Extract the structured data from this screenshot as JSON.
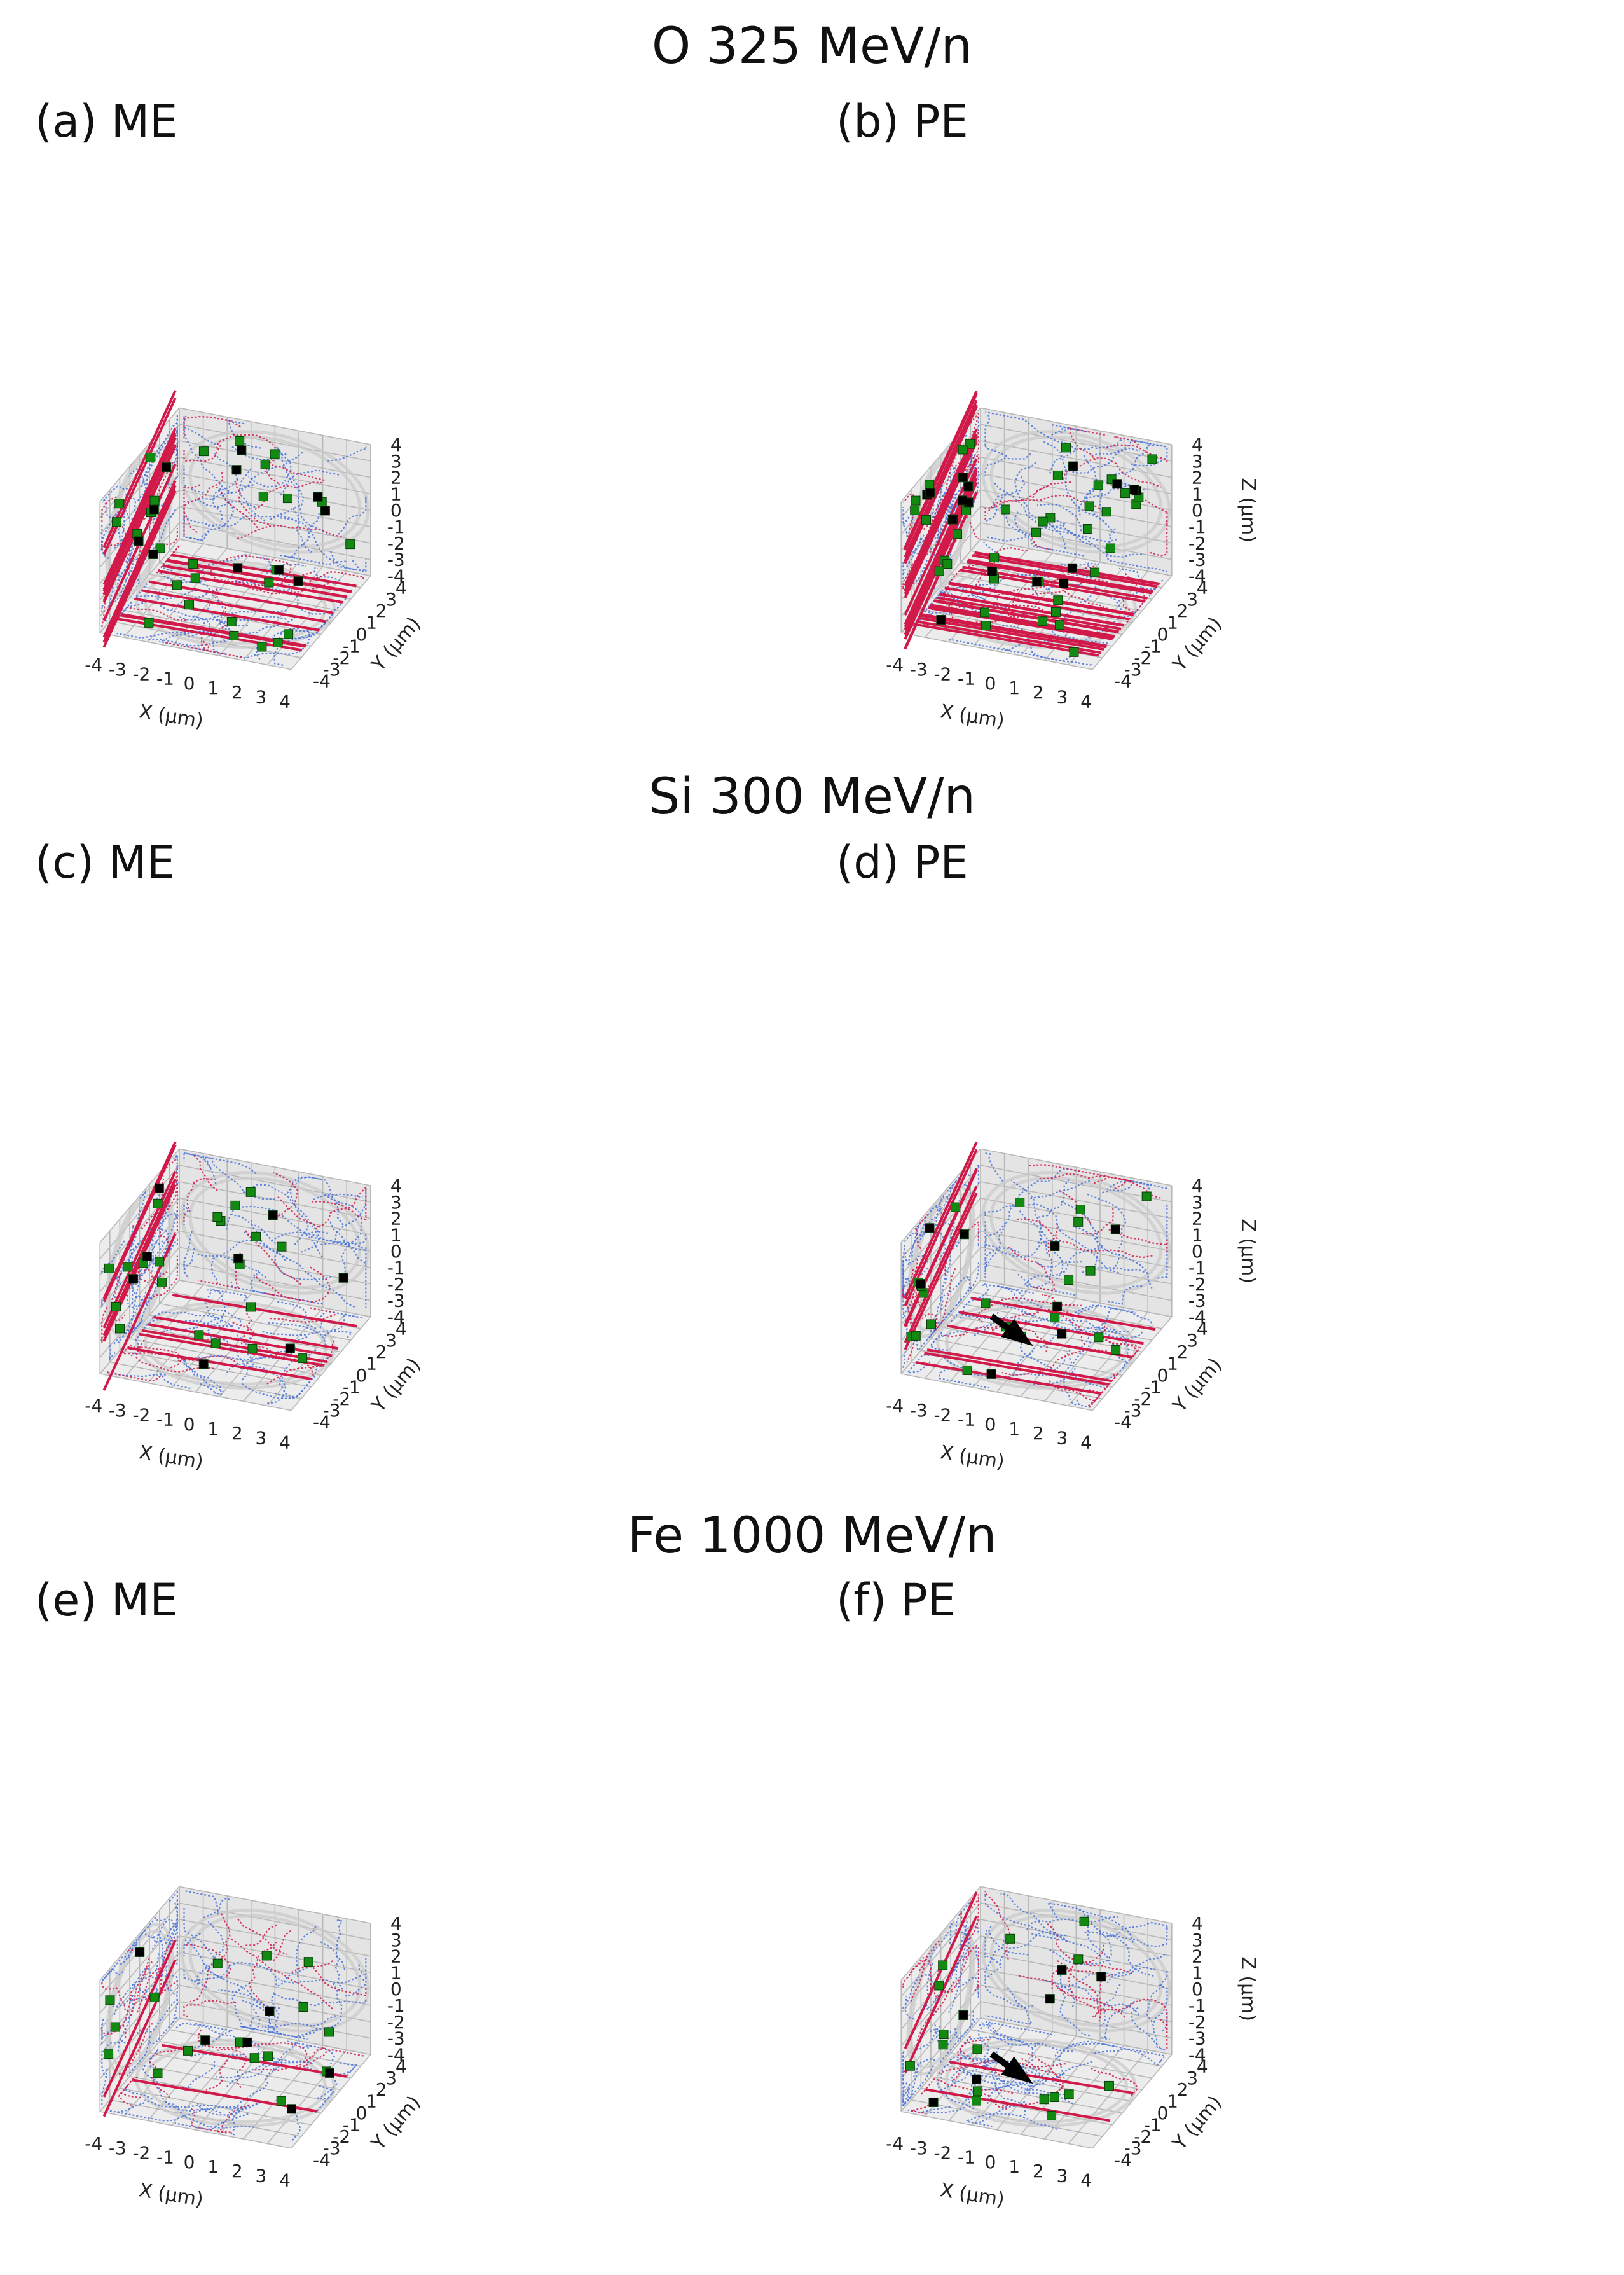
{
  "chart_data": {
    "type": "scatter",
    "figure_type": "3d-projection-panels",
    "axes": {
      "x": {
        "label": "X (μm)",
        "ticks": [
          -4,
          -3,
          -2,
          -1,
          0,
          1,
          2,
          3,
          4
        ]
      },
      "y": {
        "label": "Y (μm)",
        "ticks": [
          -4,
          -3,
          -2,
          -1,
          0,
          1,
          2,
          3,
          4
        ]
      },
      "z": {
        "label": "Z (μm)",
        "ticks": [
          -4,
          -3,
          -2,
          -1,
          0,
          1,
          2,
          3,
          4
        ]
      }
    },
    "colors": {
      "track": "#d11a4a",
      "secondary": "#4a73d9",
      "green_marker": "#128a12",
      "black_marker": "#000000",
      "pane": "#ececec",
      "grid": "#b8b8b8",
      "ellipse": "#c9c9c9"
    },
    "rows": [
      {
        "title": "O 325 MeV/n",
        "panels": [
          {
            "label": "(a) ME",
            "primary_tracks": 13,
            "arrow": false
          },
          {
            "label": "(b) PE",
            "primary_tracks": 24,
            "arrow": false
          }
        ]
      },
      {
        "title": "Si 300 MeV/n",
        "panels": [
          {
            "label": "(c) ME",
            "primary_tracks": 6,
            "arrow": false
          },
          {
            "label": "(d) PE",
            "primary_tracks": 6,
            "arrow": true
          }
        ]
      },
      {
        "title": "Fe 1000 MeV/n",
        "panels": [
          {
            "label": "(e) ME",
            "primary_tracks": 2,
            "arrow": false
          },
          {
            "label": "(f) PE",
            "primary_tracks": 2,
            "arrow": true
          }
        ]
      }
    ]
  }
}
